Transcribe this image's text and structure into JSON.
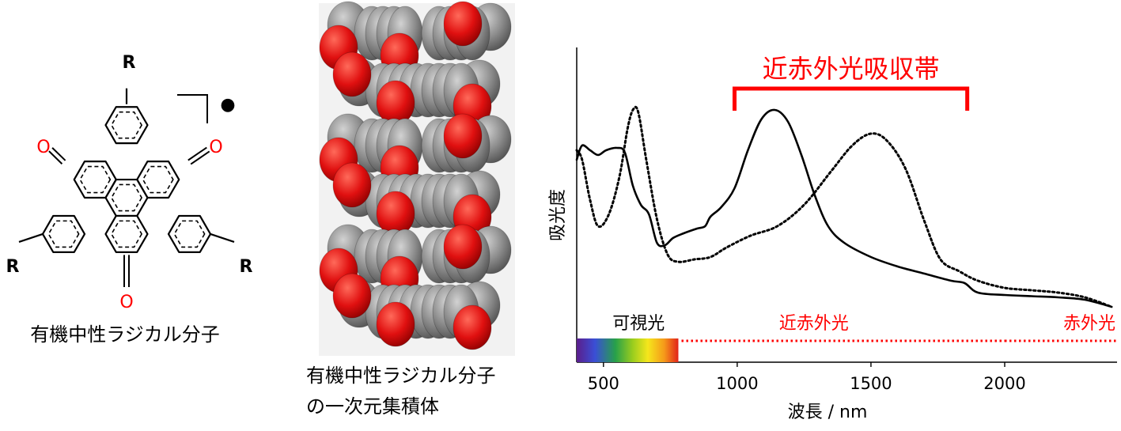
{
  "molecule": {
    "caption": "有機中性ラジカル分子",
    "substituent": "R",
    "oxygen": "O",
    "radical_symbol": "●",
    "oxygen_color": "#ff0000"
  },
  "stack": {
    "caption_line1": "有機中性ラジカル分子",
    "caption_line2": "の一次元集積体",
    "carbon_color": "#8c8c8c",
    "oxygen_color": "#e01010"
  },
  "chart_data": {
    "type": "line",
    "xlabel": "波長 / nm",
    "ylabel": "吸光度",
    "xlim": [
      400,
      2420
    ],
    "x_ticks": [
      500,
      1000,
      1500,
      2000
    ],
    "grid": false,
    "band_annotation": {
      "label": "近赤外光吸収帯",
      "x_range": [
        990,
        1860
      ],
      "color": "#ff0000"
    },
    "regions": [
      {
        "label": "可視光",
        "x_range": [
          400,
          780
        ],
        "color": "#000000",
        "style": "spectrum-gradient"
      },
      {
        "label": "近赤外光",
        "x_range": [
          780,
          2000
        ],
        "color": "#ff0000",
        "style": "dotted"
      },
      {
        "label": "赤外光",
        "x_range": [
          2000,
          2420
        ],
        "color": "#ff0000",
        "style": "dotted"
      }
    ],
    "series": [
      {
        "style": "solid",
        "color": "#000000",
        "points": [
          [
            400,
            0.62
          ],
          [
            420,
            0.68
          ],
          [
            450,
            0.66
          ],
          [
            480,
            0.64
          ],
          [
            510,
            0.66
          ],
          [
            550,
            0.67
          ],
          [
            580,
            0.65
          ],
          [
            610,
            0.51
          ],
          [
            640,
            0.43
          ],
          [
            670,
            0.39
          ],
          [
            700,
            0.27
          ],
          [
            730,
            0.26
          ],
          [
            760,
            0.29
          ],
          [
            800,
            0.31
          ],
          [
            850,
            0.33
          ],
          [
            880,
            0.34
          ],
          [
            900,
            0.38
          ],
          [
            940,
            0.42
          ],
          [
            990,
            0.5
          ],
          [
            1040,
            0.66
          ],
          [
            1090,
            0.79
          ],
          [
            1140,
            0.83
          ],
          [
            1190,
            0.78
          ],
          [
            1240,
            0.64
          ],
          [
            1290,
            0.47
          ],
          [
            1340,
            0.34
          ],
          [
            1400,
            0.27
          ],
          [
            1500,
            0.21
          ],
          [
            1600,
            0.17
          ],
          [
            1700,
            0.14
          ],
          [
            1800,
            0.11
          ],
          [
            1850,
            0.1
          ],
          [
            1900,
            0.06
          ],
          [
            2000,
            0.05
          ],
          [
            2100,
            0.045
          ],
          [
            2200,
            0.04
          ],
          [
            2300,
            0.03
          ],
          [
            2400,
            0.0
          ]
        ]
      },
      {
        "style": "dotted",
        "color": "#000000",
        "points": [
          [
            400,
            0.66
          ],
          [
            420,
            0.62
          ],
          [
            450,
            0.45
          ],
          [
            480,
            0.34
          ],
          [
            520,
            0.39
          ],
          [
            560,
            0.55
          ],
          [
            590,
            0.75
          ],
          [
            610,
            0.83
          ],
          [
            630,
            0.82
          ],
          [
            660,
            0.62
          ],
          [
            700,
            0.37
          ],
          [
            740,
            0.22
          ],
          [
            780,
            0.19
          ],
          [
            840,
            0.2
          ],
          [
            900,
            0.21
          ],
          [
            960,
            0.25
          ],
          [
            1050,
            0.3
          ],
          [
            1150,
            0.34
          ],
          [
            1250,
            0.43
          ],
          [
            1350,
            0.57
          ],
          [
            1430,
            0.68
          ],
          [
            1500,
            0.73
          ],
          [
            1560,
            0.7
          ],
          [
            1630,
            0.58
          ],
          [
            1700,
            0.36
          ],
          [
            1760,
            0.2
          ],
          [
            1830,
            0.15
          ],
          [
            1900,
            0.11
          ],
          [
            2000,
            0.08
          ],
          [
            2100,
            0.07
          ],
          [
            2200,
            0.06
          ],
          [
            2300,
            0.04
          ],
          [
            2400,
            0.0
          ]
        ]
      }
    ]
  }
}
